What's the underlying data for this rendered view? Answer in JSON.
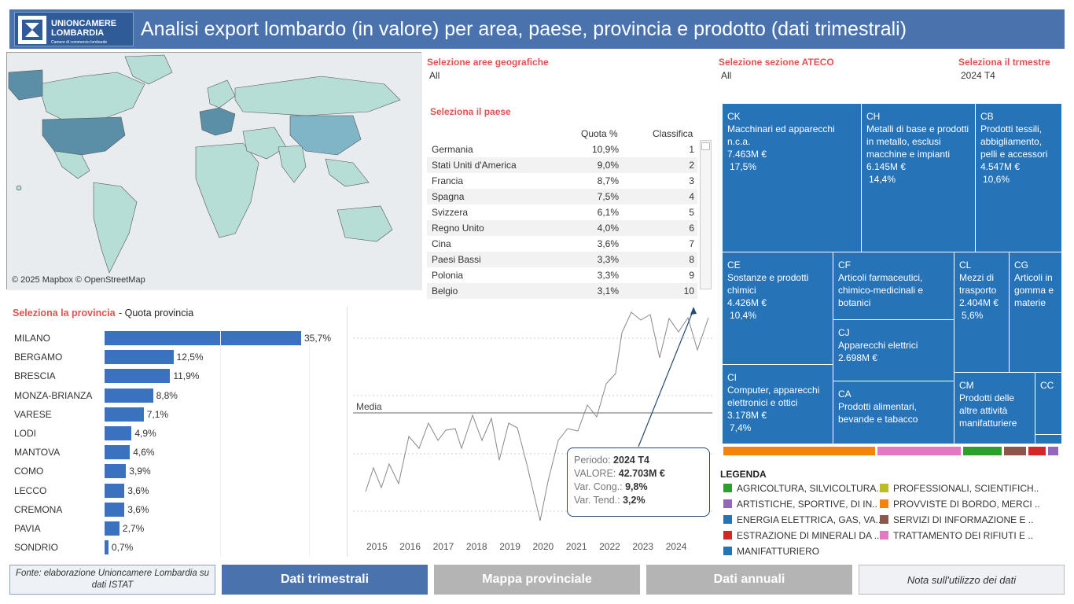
{
  "header": {
    "logo_line1": "UNIONCAMERE",
    "logo_line2": "LOMBARDIA",
    "logo_sub": "Camere di commercio lombarde",
    "title": "Analisi export lombardo (in valore) per area, paese, provincia e prodotto (dati trimestrali)"
  },
  "map": {
    "attribution": "© 2025 Mapbox  © OpenStreetMap"
  },
  "filters": {
    "area_label": "Selezione aree geografiche",
    "area_value": "All",
    "ateco_label": "Selezione sezione ATECO",
    "ateco_value": "All",
    "quarter_label": "Seleziona il trmestre",
    "quarter_value": "2024 T4",
    "country_label": "Seleziona il paese"
  },
  "country_table": {
    "col_share": "Quota %",
    "col_rank": "Classifica",
    "rows": [
      {
        "name": "Germania",
        "share": "10,9%",
        "rank": "1"
      },
      {
        "name": "Stati Uniti d'America",
        "share": "9,0%",
        "rank": "2"
      },
      {
        "name": "Francia",
        "share": "8,7%",
        "rank": "3"
      },
      {
        "name": "Spagna",
        "share": "7,5%",
        "rank": "4"
      },
      {
        "name": "Svizzera",
        "share": "6,1%",
        "rank": "5"
      },
      {
        "name": "Regno Unito",
        "share": "4,0%",
        "rank": "6"
      },
      {
        "name": "Cina",
        "share": "3,6%",
        "rank": "7"
      },
      {
        "name": "Paesi Bassi",
        "share": "3,3%",
        "rank": "8"
      },
      {
        "name": "Polonia",
        "share": "3,3%",
        "rank": "9"
      },
      {
        "name": "Belgio",
        "share": "3,1%",
        "rank": "10"
      }
    ]
  },
  "province": {
    "label_red": "Seleziona la provincia",
    "label_black": " - Quota provincia",
    "chart_data": {
      "type": "bar",
      "categories": [
        "MILANO",
        "BERGAMO",
        "BRESCIA",
        "MONZA-BRIANZA",
        "VARESE",
        "LODI",
        "MANTOVA",
        "COMO",
        "LECCO",
        "CREMONA",
        "PAVIA",
        "SONDRIO"
      ],
      "values": [
        35.7,
        12.5,
        11.9,
        8.8,
        7.1,
        4.9,
        4.6,
        3.9,
        3.6,
        3.6,
        2.7,
        0.7
      ],
      "labels": [
        "35,7%",
        "12,5%",
        "11,9%",
        "8,8%",
        "7,1%",
        "4,9%",
        "4,6%",
        "3,9%",
        "3,6%",
        "3,6%",
        "2,7%",
        "0,7%"
      ],
      "color": "#3a72bf"
    }
  },
  "trend": {
    "media_label": "Media",
    "years": [
      "2015",
      "2016",
      "2017",
      "2018",
      "2019",
      "2020",
      "2021",
      "2022",
      "2023",
      "2024"
    ],
    "tooltip": {
      "period_label": "Periodo:",
      "period_value": "2024 T4",
      "value_label": "VALORE:",
      "value_value": "42.703M €",
      "cong_label": "Var. Cong.:",
      "cong_value": "9,8%",
      "tend_label": "Var. Tend.:",
      "tend_value": "3,2%"
    }
  },
  "treemap": {
    "tiles": [
      {
        "code": "CK",
        "name": "Macchinari ed apparecchi n.c.a.",
        "value": "7.463M €",
        "share": "17,5%"
      },
      {
        "code": "CH",
        "name": "Metalli di base e prodotti in metallo, esclusi macchine e impianti",
        "value": "6.145M €",
        "share": "14,4%"
      },
      {
        "code": "CB",
        "name": "Prodotti tessili, abbigliamento, pelli e accessori",
        "value": "4.547M €",
        "share": "10,6%"
      },
      {
        "code": "CE",
        "name": "Sostanze e prodotti chimici",
        "value": "4.426M €",
        "share": "10,4%"
      },
      {
        "code": "CF",
        "name": "Articoli farmaceutici, chimico-medicinali e botanici",
        "value": "",
        "share": ""
      },
      {
        "code": "CL",
        "name": "Mezzi di trasporto",
        "value": "2.404M €",
        "share": "5,6%"
      },
      {
        "code": "CG",
        "name": "Articoli in gomma e materie",
        "value": "",
        "share": ""
      },
      {
        "code": "CJ",
        "name": "Apparecchi elettrici",
        "value": "2.698M €",
        "share": ""
      },
      {
        "code": "CI",
        "name": "Computer, apparecchi elettronici e ottici",
        "value": "3.178M €",
        "share": "7,4%"
      },
      {
        "code": "CA",
        "name": "Prodotti alimentari, bevande e tabacco",
        "value": "",
        "share": ""
      },
      {
        "code": "CM",
        "name": "Prodotti delle altre attività manifatturiere",
        "value": "",
        "share": ""
      },
      {
        "code": "CC",
        "name": "",
        "value": "",
        "share": ""
      }
    ]
  },
  "legend": {
    "title": "LEGENDA",
    "items": [
      {
        "label": "AGRICOLTURA, SILVICOLTURA..",
        "color": "#2ca02c"
      },
      {
        "label": "PROFESSIONALI, SCIENTIFICH..",
        "color": "#bcbd22"
      },
      {
        "label": "ARTISTICHE, SPORTIVE, DI IN..",
        "color": "#9467bd"
      },
      {
        "label": "PROVVISTE DI BORDO, MERCI ..",
        "color": "#f5820d"
      },
      {
        "label": "ENERGIA ELETTRICA, GAS, VA..",
        "color": "#2673b8"
      },
      {
        "label": "SERVIZI DI INFORMAZIONE E ..",
        "color": "#8c564b"
      },
      {
        "label": "ESTRAZIONE DI MINERALI DA ..",
        "color": "#d62728"
      },
      {
        "label": "TRATTAMENTO DEI RIFIUTI E ..",
        "color": "#e377c2"
      },
      {
        "label": "MANIFATTURIERO",
        "color": "#2673b8"
      }
    ]
  },
  "footer": {
    "source": "Fonte: elaborazione Unioncamere Lombardia su dati ISTAT",
    "btn1": "Dati trimestrali",
    "btn2": "Mappa provinciale",
    "btn3": "Dati annuali",
    "btn4": "Nota sull'utilizzo dei dati"
  }
}
